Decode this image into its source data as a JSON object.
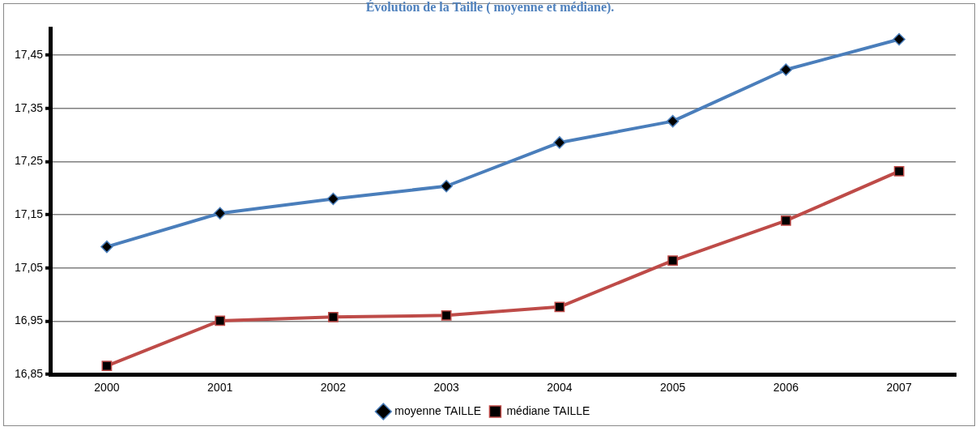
{
  "chart_data": {
    "type": "line",
    "title": "Évolution de la Taille ( moyenne et médiane).",
    "categories": [
      "2000",
      "2001",
      "2002",
      "2003",
      "2004",
      "2005",
      "2006",
      "2007"
    ],
    "series": [
      {
        "name": "moyenne TAILLE",
        "color": "#4a7ebb",
        "marker": "diamond",
        "values": [
          17.09,
          17.153,
          17.18,
          17.204,
          17.286,
          17.326,
          17.423,
          17.48
        ]
      },
      {
        "name": "médiane TAILLE",
        "color": "#be4b48",
        "marker": "square",
        "values": [
          16.866,
          16.951,
          16.958,
          16.961,
          16.977,
          17.064,
          17.139,
          17.232
        ]
      }
    ],
    "ylim": [
      16.85,
      17.5
    ],
    "yticks": [
      {
        "value": 16.85,
        "label": "16,85"
      },
      {
        "value": 16.95,
        "label": "16,95"
      },
      {
        "value": 17.05,
        "label": "17,05"
      },
      {
        "value": 17.15,
        "label": "17,15"
      },
      {
        "value": 17.25,
        "label": "17,25"
      },
      {
        "value": 17.35,
        "label": "17,35"
      },
      {
        "value": 17.45,
        "label": "17,45"
      }
    ],
    "grid": "y",
    "legend": "bottom",
    "line_style": "solid"
  }
}
